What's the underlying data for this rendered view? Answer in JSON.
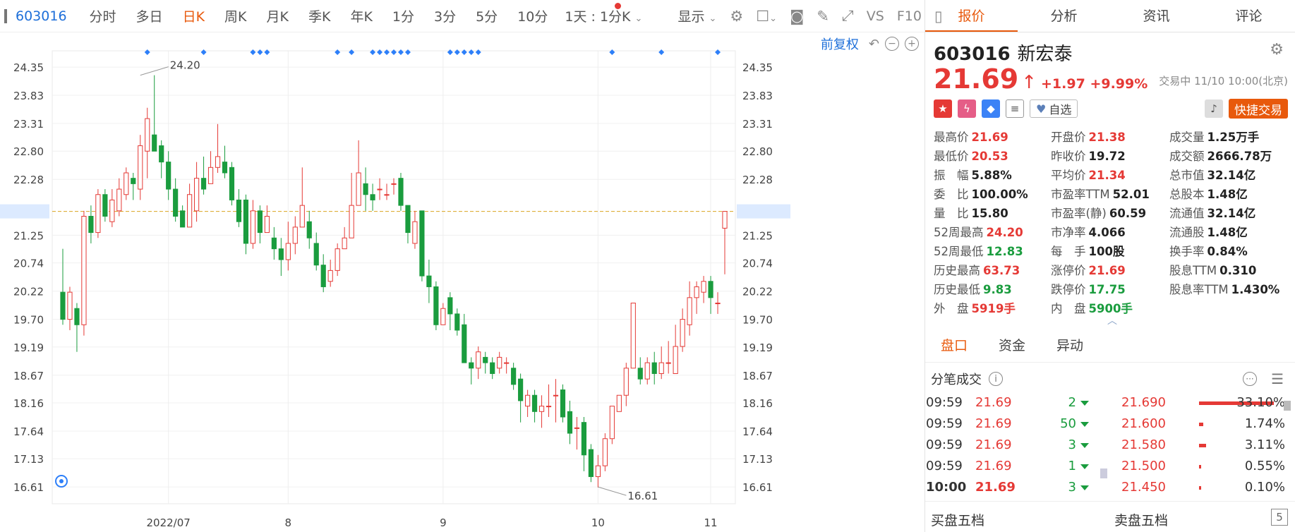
{
  "toolbar": {
    "code": "603016",
    "items": [
      "分时",
      "多日",
      "日K",
      "周K",
      "月K",
      "季K",
      "年K",
      "1分",
      "3分",
      "5分",
      "10分"
    ],
    "active": "日K",
    "interval_select": "1天 : 1分K",
    "display_label": "显示",
    "vs_label": "VS",
    "f10_label": "F10"
  },
  "subbar": {
    "adjust_label": "前复权"
  },
  "chart_data": {
    "type": "candlestick",
    "y_ticks": [
      24.35,
      23.83,
      23.31,
      22.8,
      22.28,
      21.69,
      21.25,
      20.74,
      20.22,
      19.7,
      19.19,
      18.67,
      18.16,
      17.64,
      17.13,
      16.61
    ],
    "ylim": [
      16.3,
      24.65
    ],
    "x_labels": [
      {
        "label": "2022/07",
        "index": 15
      },
      {
        "label": "8",
        "index": 32
      },
      {
        "label": "9",
        "index": 54
      },
      {
        "label": "10",
        "index": 76
      },
      {
        "label": "11",
        "index": 92
      }
    ],
    "last_price_line": 21.69,
    "max_annotation": {
      "value": "24.20",
      "index": 11
    },
    "min_annotation": {
      "value": "16.61",
      "index": 76
    },
    "candles": [
      [
        20.2,
        19.7,
        21.0,
        19.6
      ],
      [
        19.7,
        20.2,
        20.3,
        19.5
      ],
      [
        19.9,
        19.6,
        20.0,
        19.1
      ],
      [
        19.6,
        21.6,
        21.7,
        19.4
      ],
      [
        21.6,
        21.3,
        21.8,
        21.1
      ],
      [
        21.3,
        22.0,
        22.1,
        21.2
      ],
      [
        22.0,
        21.6,
        22.1,
        21.5
      ],
      [
        21.5,
        21.9,
        22.1,
        21.4
      ],
      [
        21.7,
        22.1,
        22.3,
        21.6
      ],
      [
        22.0,
        22.4,
        22.5,
        21.9
      ],
      [
        22.3,
        22.2,
        22.4,
        21.9
      ],
      [
        22.1,
        22.9,
        23.1,
        21.9
      ],
      [
        22.8,
        23.4,
        23.6,
        22.3
      ],
      [
        23.1,
        22.8,
        24.2,
        22.8
      ],
      [
        22.9,
        22.6,
        23.0,
        22.3
      ],
      [
        22.6,
        22.1,
        22.8,
        21.9
      ],
      [
        22.1,
        21.6,
        22.3,
        21.5
      ],
      [
        21.7,
        21.4,
        21.8,
        21.4
      ],
      [
        21.4,
        22.0,
        22.2,
        21.4
      ],
      [
        21.7,
        22.3,
        22.6,
        21.5
      ],
      [
        22.3,
        22.1,
        22.7,
        22.0
      ],
      [
        22.2,
        22.5,
        22.8,
        22.2
      ],
      [
        22.5,
        22.7,
        23.3,
        22.4
      ],
      [
        22.6,
        22.4,
        22.9,
        22.3
      ],
      [
        22.5,
        21.9,
        22.6,
        21.8
      ],
      [
        21.9,
        21.5,
        22.1,
        21.4
      ],
      [
        21.9,
        21.1,
        22.0,
        20.9
      ],
      [
        21.1,
        21.7,
        21.9,
        21.0
      ],
      [
        21.7,
        21.3,
        21.8,
        21.1
      ],
      [
        21.3,
        21.6,
        21.8,
        21.3
      ],
      [
        21.2,
        21.0,
        21.4,
        20.8
      ],
      [
        21.0,
        20.8,
        21.2,
        20.5
      ],
      [
        20.8,
        21.1,
        21.5,
        20.6
      ],
      [
        21.1,
        21.4,
        21.6,
        20.9
      ],
      [
        21.4,
        21.8,
        22.5,
        21.4
      ],
      [
        21.5,
        21.2,
        21.7,
        21.0
      ],
      [
        21.1,
        20.7,
        21.3,
        20.6
      ],
      [
        20.7,
        20.3,
        20.9,
        20.2
      ],
      [
        20.4,
        20.6,
        20.8,
        20.3
      ],
      [
        20.6,
        21.0,
        21.1,
        20.5
      ],
      [
        21.0,
        21.2,
        21.4,
        21.0
      ],
      [
        21.2,
        21.8,
        22.4,
        21.2
      ],
      [
        21.8,
        22.4,
        23.0,
        21.8
      ],
      [
        22.2,
        22.0,
        22.5,
        21.7
      ],
      [
        22.0,
        21.9,
        22.2,
        21.7
      ],
      [
        22.1,
        22.1,
        22.3,
        21.9
      ],
      [
        22.0,
        22.0,
        22.2,
        21.9
      ],
      [
        22.2,
        22.2,
        22.3,
        22.0
      ],
      [
        22.3,
        21.8,
        22.4,
        21.7
      ],
      [
        21.8,
        21.3,
        21.8,
        21.1
      ],
      [
        21.1,
        21.5,
        21.7,
        21.0
      ],
      [
        21.7,
        20.5,
        21.7,
        20.4
      ],
      [
        20.5,
        20.3,
        20.8,
        20.0
      ],
      [
        20.3,
        19.6,
        20.4,
        19.5
      ],
      [
        19.6,
        19.9,
        20.0,
        19.6
      ],
      [
        20.1,
        19.8,
        20.2,
        19.5
      ],
      [
        19.8,
        19.5,
        19.9,
        19.4
      ],
      [
        19.6,
        18.9,
        19.8,
        18.9
      ],
      [
        18.9,
        18.8,
        19.0,
        18.5
      ],
      [
        18.8,
        19.1,
        19.2,
        18.6
      ],
      [
        19.0,
        18.9,
        19.1,
        18.7
      ],
      [
        18.9,
        18.7,
        19.0,
        18.6
      ],
      [
        18.8,
        19.0,
        19.1,
        18.7
      ],
      [
        18.9,
        18.9,
        19.0,
        18.7
      ],
      [
        18.8,
        18.5,
        18.9,
        18.4
      ],
      [
        18.6,
        18.2,
        18.7,
        17.8
      ],
      [
        18.1,
        18.3,
        18.4,
        17.9
      ],
      [
        18.3,
        18.0,
        18.4,
        17.8
      ],
      [
        18.0,
        18.1,
        18.3,
        17.7
      ],
      [
        18.1,
        18.1,
        18.5,
        17.9
      ],
      [
        18.3,
        18.3,
        18.6,
        17.8
      ],
      [
        18.4,
        17.9,
        18.5,
        17.8
      ],
      [
        18.0,
        17.6,
        18.2,
        17.4
      ],
      [
        17.7,
        17.7,
        17.9,
        17.3
      ],
      [
        17.8,
        17.2,
        17.9,
        16.9
      ],
      [
        17.3,
        16.8,
        17.4,
        16.7
      ],
      [
        16.8,
        17.0,
        17.2,
        16.6
      ],
      [
        17.0,
        17.5,
        17.6,
        16.9
      ],
      [
        17.5,
        18.1,
        18.1,
        17.4
      ],
      [
        18.0,
        18.3,
        18.3,
        18.0
      ],
      [
        18.3,
        18.8,
        18.9,
        18.1
      ],
      [
        18.8,
        20.0,
        20.0,
        18.8
      ],
      [
        18.8,
        18.6,
        19.0,
        18.5
      ],
      [
        18.6,
        18.9,
        19.0,
        18.5
      ],
      [
        18.9,
        18.7,
        19.1,
        18.5
      ],
      [
        18.7,
        18.9,
        19.2,
        18.6
      ],
      [
        18.9,
        18.9,
        19.3,
        18.7
      ],
      [
        18.7,
        19.2,
        19.6,
        18.7
      ],
      [
        19.2,
        19.7,
        19.9,
        19.1
      ],
      [
        19.6,
        20.1,
        20.4,
        19.4
      ],
      [
        20.1,
        20.3,
        20.4,
        19.8
      ],
      [
        20.2,
        20.4,
        20.5,
        20.0
      ],
      [
        20.4,
        20.1,
        20.5,
        19.8
      ],
      [
        20.0,
        20.0,
        20.2,
        19.8
      ],
      [
        21.38,
        21.69,
        21.69,
        20.53
      ]
    ]
  },
  "tabs": [
    "报价",
    "分析",
    "资讯",
    "评论"
  ],
  "active_tab": "报价",
  "stock": {
    "code": "603016",
    "name": "新宏泰",
    "price": "21.69",
    "arrow": "↑",
    "change": "+1.97",
    "change_pct": "+9.99%",
    "status": "交易中 11/10 10:00(北京)",
    "watch_label": "自选",
    "quick_trade": "快捷交易"
  },
  "stats": [
    {
      "label": "最高价",
      "value": "21.69",
      "tone": "red"
    },
    {
      "label": "开盘价",
      "value": "21.38",
      "tone": "red"
    },
    {
      "label": "成交量",
      "value": "1.25万手",
      "tone": "dark"
    },
    {
      "label": "最低价",
      "value": "20.53",
      "tone": "red"
    },
    {
      "label": "昨收价",
      "value": "19.72",
      "tone": "dark"
    },
    {
      "label": "成交额",
      "value": "2666.78万",
      "tone": "dark"
    },
    {
      "label": "振　幅",
      "value": "5.88%",
      "tone": "dark"
    },
    {
      "label": "平均价",
      "value": "21.34",
      "tone": "red"
    },
    {
      "label": "总市值",
      "value": "32.14亿",
      "tone": "dark"
    },
    {
      "label": "委　比",
      "value": "100.00%",
      "tone": "dark"
    },
    {
      "label": "市盈率TTM",
      "value": "52.01",
      "tone": "dark"
    },
    {
      "label": "总股本",
      "value": "1.48亿",
      "tone": "dark"
    },
    {
      "label": "量　比",
      "value": "15.80",
      "tone": "dark"
    },
    {
      "label": "市盈率(静)",
      "value": "60.59",
      "tone": "dark"
    },
    {
      "label": "流通值",
      "value": "32.14亿",
      "tone": "dark"
    },
    {
      "label": "52周最高",
      "value": "24.20",
      "tone": "red"
    },
    {
      "label": "市净率",
      "value": "4.066",
      "tone": "dark"
    },
    {
      "label": "流通股",
      "value": "1.48亿",
      "tone": "dark"
    },
    {
      "label": "52周最低",
      "value": "12.83",
      "tone": "green"
    },
    {
      "label": "每　手",
      "value": "100股",
      "tone": "dark"
    },
    {
      "label": "换手率",
      "value": "0.84%",
      "tone": "dark"
    },
    {
      "label": "历史最高",
      "value": "63.73",
      "tone": "red"
    },
    {
      "label": "涨停价",
      "value": "21.69",
      "tone": "red"
    },
    {
      "label": "股息TTM",
      "value": "0.310",
      "tone": "dark"
    },
    {
      "label": "历史最低",
      "value": "9.83",
      "tone": "green"
    },
    {
      "label": "跌停价",
      "value": "17.75",
      "tone": "green"
    },
    {
      "label": "股息率TTM",
      "value": "1.430%",
      "tone": "dark"
    },
    {
      "label": "外　盘",
      "value": "5919手",
      "tone": "red"
    },
    {
      "label": "内　盘",
      "value": "5900手",
      "tone": "green"
    }
  ],
  "subtabs": [
    "盘口",
    "资金",
    "异动"
  ],
  "ticks_title": "分笔成交",
  "ticks": [
    {
      "time": "09:59",
      "price": "21.69",
      "vol": "2"
    },
    {
      "time": "09:59",
      "price": "21.69",
      "vol": "50"
    },
    {
      "time": "09:59",
      "price": "21.69",
      "vol": "3"
    },
    {
      "time": "09:59",
      "price": "21.69",
      "vol": "1"
    },
    {
      "time": "10:00",
      "price": "21.69",
      "vol": "3"
    }
  ],
  "distribution": [
    {
      "price": "21.690",
      "pct": "33.10%",
      "ratio": 0.331
    },
    {
      "price": "21.600",
      "pct": "1.74%",
      "ratio": 0.0174
    },
    {
      "price": "21.580",
      "pct": "3.11%",
      "ratio": 0.0311
    },
    {
      "price": "21.500",
      "pct": "0.55%",
      "ratio": 0.0055
    },
    {
      "price": "21.450",
      "pct": "0.10%",
      "ratio": 0.001
    }
  ],
  "bottom": {
    "buy5": "买盘五档",
    "sell5": "卖盘五档",
    "five": "5"
  },
  "colors": {
    "up": "#e53935",
    "down": "#1a9c3e",
    "accent": "#e8590c",
    "link": "#1e6fd9"
  }
}
